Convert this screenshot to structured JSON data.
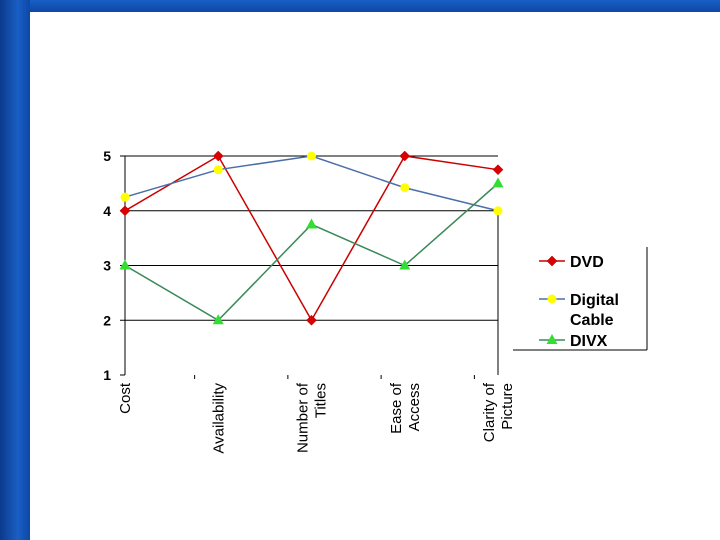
{
  "chart_data": {
    "type": "line",
    "title": "",
    "xlabel": "",
    "ylabel": "",
    "categories": [
      [
        "Cost"
      ],
      [
        "Availability"
      ],
      [
        "Number of",
        "Titles"
      ],
      [
        "Ease of",
        "Access"
      ],
      [
        "Clarity of",
        "Picture"
      ]
    ],
    "ylim": [
      1,
      5
    ],
    "yticks": [
      "1",
      "2",
      "3",
      "4",
      "5"
    ],
    "grid": true,
    "legend_position": "right",
    "series": [
      {
        "name": "DVD",
        "values": [
          4,
          5,
          2,
          5,
          4.75
        ],
        "color": "#cc0000",
        "marker": "diamond",
        "marker_color": "#dd0000"
      },
      {
        "name": "Digital Cable",
        "values": [
          4.25,
          4.75,
          5,
          4.42,
          4
        ],
        "color": "#4a6fa8",
        "marker": "circle",
        "marker_color": "#ffff00"
      },
      {
        "name": "DIVX",
        "values": [
          3,
          2,
          3.75,
          3,
          4.5
        ],
        "color": "#3a8a5a",
        "marker": "triangle",
        "marker_color": "#33dd33"
      }
    ],
    "legend_labels": [
      [
        "DVD"
      ],
      [
        "Digital",
        "Cable"
      ],
      [
        "DIVX"
      ]
    ]
  },
  "theme": {
    "background": "#ffffff",
    "band_color": "#1a5fc4"
  }
}
